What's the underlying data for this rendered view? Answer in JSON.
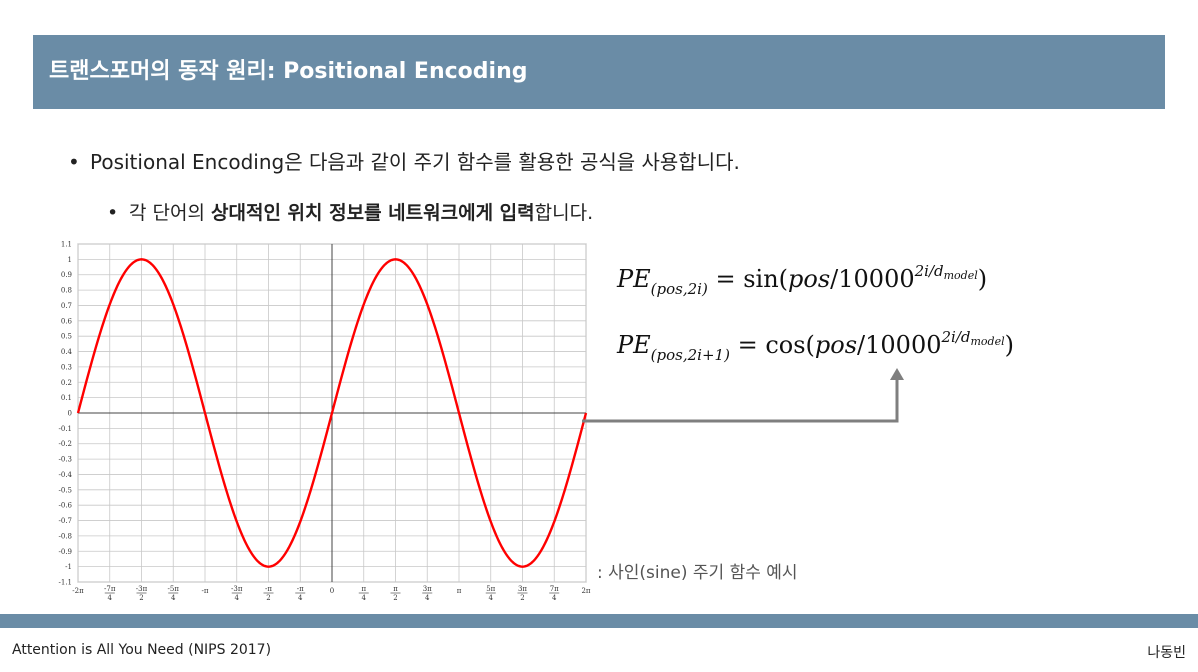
{
  "header": {
    "title": "트랜스포머의 동작 원리: Positional Encoding"
  },
  "bullets": {
    "b1_dot": "•",
    "b1_text": "Positional Encoding은 다음과 같이 주기 함수를 활용한 공식을 사용합니다.",
    "b2_dot": "•",
    "b2_pre": "각 단어의 ",
    "b2_bold": "상대적인 위치 정보를 네트워크에게 입력",
    "b2_post": "합니다."
  },
  "formulas": {
    "f1": {
      "lhs": "PE",
      "sub": "(pos,2i)",
      "eq": " = ",
      "fn": "sin",
      "open": "(",
      "arg": "pos",
      "div": "/10000",
      "sup": "2i/d",
      "supsub": "model",
      "close": ")"
    },
    "f2": {
      "lhs": "PE",
      "sub": "(pos,2i+1)",
      "eq": " = ",
      "fn": "cos",
      "open": "(",
      "arg": "pos",
      "div": "/10000",
      "sup": "2i/d",
      "supsub": "model",
      "close": ")"
    }
  },
  "caption": ": 사인(sine) 주기 함수 예시",
  "footer": {
    "left": "Attention is All You Need (NIPS 2017)",
    "right": "나동빈"
  },
  "colors": {
    "accent": "#6a8ca6",
    "curve": "#ff0000",
    "arrow": "#7f7f7f"
  },
  "chart_data": {
    "type": "line",
    "function": "sin(x)",
    "xlim": [
      -6.2832,
      6.2832
    ],
    "ylim": [
      -1.1,
      1.1
    ],
    "grid": true,
    "x_ticks": [
      {
        "v": -6.2832,
        "label": "-2π"
      },
      {
        "v": -5.4978,
        "num": "-7π",
        "den": "4"
      },
      {
        "v": -4.7124,
        "num": "-3π",
        "den": "2"
      },
      {
        "v": -3.927,
        "num": "-5π",
        "den": "4"
      },
      {
        "v": -3.1416,
        "label": "-π"
      },
      {
        "v": -2.3562,
        "num": "-3π",
        "den": "4"
      },
      {
        "v": -1.5708,
        "num": "-π",
        "den": "2"
      },
      {
        "v": -0.7854,
        "num": "-π",
        "den": "4"
      },
      {
        "v": 0,
        "label": "0"
      },
      {
        "v": 0.7854,
        "num": "π",
        "den": "4"
      },
      {
        "v": 1.5708,
        "num": "π",
        "den": "2"
      },
      {
        "v": 2.3562,
        "num": "3π",
        "den": "4"
      },
      {
        "v": 3.1416,
        "label": "π"
      },
      {
        "v": 3.927,
        "num": "5π",
        "den": "4"
      },
      {
        "v": 4.7124,
        "num": "3π",
        "den": "2"
      },
      {
        "v": 5.4978,
        "num": "7π",
        "den": "4"
      },
      {
        "v": 6.2832,
        "label": "2π"
      }
    ],
    "y_ticks": [
      "1.1",
      "1",
      "0.9",
      "0.8",
      "0.7",
      "0.6",
      "0.5",
      "0.4",
      "0.3",
      "0.2",
      "0.1",
      "0",
      "-0.1",
      "-0.2",
      "-0.3",
      "-0.4",
      "-0.5",
      "-0.6",
      "-0.7",
      "-0.8",
      "-0.9",
      "-1",
      "-1.1"
    ],
    "y_values": [
      1.1,
      1,
      0.9,
      0.8,
      0.7,
      0.6,
      0.5,
      0.4,
      0.3,
      0.2,
      0.1,
      0,
      -0.1,
      -0.2,
      -0.3,
      -0.4,
      -0.5,
      -0.6,
      -0.7,
      -0.8,
      -0.9,
      -1,
      -1.1
    ]
  }
}
